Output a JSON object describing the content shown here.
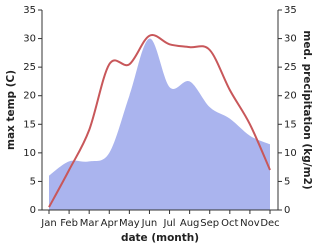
{
  "chart_data": {
    "type": "line",
    "categories": [
      "Jan",
      "Feb",
      "Mar",
      "Apr",
      "May",
      "Jun",
      "Jul",
      "Aug",
      "Sep",
      "Oct",
      "Nov",
      "Dec"
    ],
    "series": [
      {
        "name": "max temp (C)",
        "color": "#c8575a",
        "values": [
          0.5,
          7,
          14,
          25.5,
          25.5,
          30.5,
          29,
          28.5,
          28,
          21,
          15,
          7
        ]
      },
      {
        "name": "med. precipitation (kg/m2)",
        "color": "#aab4ee",
        "axis": "y2",
        "values": [
          6,
          8.5,
          8.5,
          10,
          20,
          30,
          21.5,
          22.5,
          18,
          16,
          13,
          11.5
        ]
      }
    ],
    "x_label": "date (month)",
    "y_label": "max temp (C)",
    "y2_label": "med. precipitation (kg/m2)",
    "ylim": [
      0,
      35
    ],
    "yticks": [
      0,
      5,
      10,
      15,
      20,
      25,
      30,
      35
    ],
    "y2lim": [
      0,
      35
    ],
    "y2ticks": [
      0,
      5,
      10,
      15,
      20,
      25,
      30,
      35
    ]
  }
}
